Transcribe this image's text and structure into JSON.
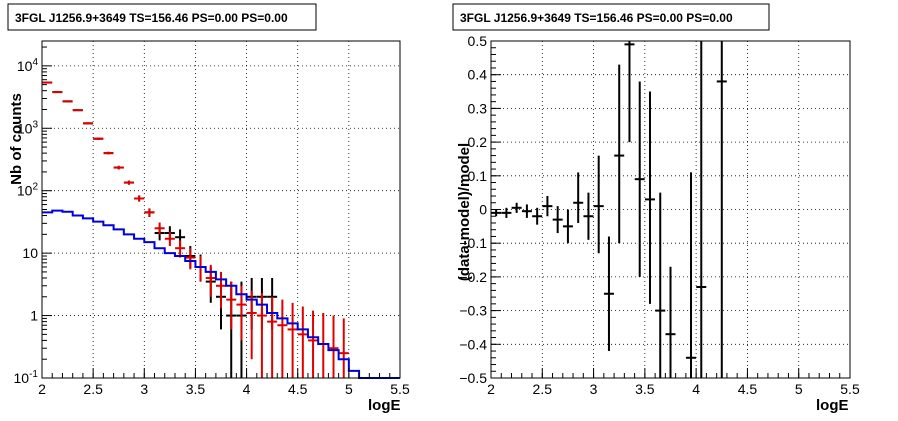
{
  "chart_data": [
    {
      "type": "line",
      "title": "3FGL J1256.9+3649 TS=156.46 PS=0.00 PS=0.00",
      "xlabel": "logE",
      "ylabel": "Nb of counts",
      "log_y": true,
      "xlim": [
        2,
        5.5
      ],
      "ylim": [
        0.1,
        25000
      ],
      "x_ticks": [
        "2",
        "2.5",
        "3",
        "3.5",
        "4",
        "4.5",
        "5",
        "5.5"
      ],
      "x_tick_values": [
        2,
        2.5,
        3,
        3.5,
        4,
        4.5,
        5,
        5.5
      ],
      "y_ticks": [
        "10^-1",
        "1",
        "10",
        "10^2",
        "10^3",
        "10^4"
      ],
      "y_tick_values": [
        0.1,
        1,
        10,
        100,
        1000,
        10000
      ],
      "grid": true,
      "series": [
        {
          "kind": "points",
          "color": "#000000",
          "x": [
            2.05,
            2.15,
            2.25,
            2.35,
            2.45,
            2.55,
            2.65,
            2.75,
            2.85,
            2.95,
            3.05,
            3.15,
            3.25,
            3.35,
            3.45,
            3.55,
            3.65,
            3.75,
            3.85,
            3.95,
            4.05,
            4.15,
            4.25
          ],
          "y": [
            5400,
            3800,
            2700,
            1950,
            1200,
            680,
            400,
            235,
            135,
            75,
            45,
            21,
            21,
            18,
            9,
            6,
            3.5,
            2,
            1,
            1,
            2,
            2,
            2
          ],
          "ylow": [
            5300,
            3700,
            2620,
            1900,
            1160,
            650,
            380,
            220,
            125,
            67,
            38,
            16,
            16,
            13,
            5.8,
            3.5,
            1.6,
            0.6,
            0.1,
            0.1,
            0.6,
            0.6,
            0.6
          ],
          "yhigh": [
            5500,
            3900,
            2780,
            2000,
            1240,
            710,
            420,
            250,
            145,
            84,
            52,
            27,
            27,
            24,
            13,
            9.5,
            6,
            4,
            3.5,
            3.5,
            4,
            4,
            4
          ]
        },
        {
          "kind": "points",
          "color": "#e00000",
          "x": [
            2.05,
            2.15,
            2.25,
            2.35,
            2.45,
            2.55,
            2.65,
            2.75,
            2.85,
            2.95,
            3.05,
            3.15,
            3.25,
            3.35,
            3.45,
            3.55,
            3.65,
            3.75,
            3.85,
            3.95,
            4.05,
            4.15,
            4.25,
            4.35,
            4.45,
            4.55,
            4.65,
            4.75,
            4.85,
            4.95
          ],
          "y": [
            5400,
            3800,
            2700,
            1950,
            1200,
            680,
            400,
            235,
            135,
            75,
            45,
            25,
            17,
            12,
            8.5,
            6,
            4,
            3,
            1.8,
            1.5,
            1.1,
            1,
            0.8,
            0.7,
            0.6,
            0.5,
            0.4,
            0.35,
            0.3,
            0.25
          ],
          "ylow": [
            5300,
            3700,
            2620,
            1900,
            1160,
            650,
            380,
            220,
            125,
            67,
            38,
            20,
            13,
            8.5,
            5.5,
            3.5,
            2,
            1.3,
            0.6,
            0.4,
            0.2,
            0.1,
            0.1,
            0.1,
            0.1,
            0.1,
            0.1,
            0.1,
            0.1,
            0.1
          ],
          "yhigh": [
            5500,
            3900,
            2780,
            2000,
            1240,
            710,
            420,
            250,
            145,
            84,
            52,
            31,
            22,
            16,
            12,
            9,
            6.5,
            5,
            3.5,
            3,
            2.5,
            2.3,
            2,
            1.8,
            1.6,
            1.4,
            1.2,
            1.1,
            1,
            0.9
          ]
        },
        {
          "kind": "step",
          "color": "#0000dd",
          "x_edges": [
            2.0,
            2.1,
            2.2,
            2.3,
            2.4,
            2.5,
            2.6,
            2.7,
            2.8,
            2.9,
            3.0,
            3.1,
            3.2,
            3.3,
            3.4,
            3.5,
            3.6,
            3.7,
            3.8,
            3.9,
            4.0,
            4.1,
            4.2,
            4.3,
            4.4,
            4.5,
            4.6,
            4.7,
            4.8,
            4.9,
            5.0,
            5.1,
            5.5
          ],
          "values": [
            45,
            48,
            46,
            40,
            36,
            32,
            28,
            24,
            20,
            17,
            15,
            12,
            10,
            9,
            7.5,
            6,
            5,
            3.8,
            3,
            2.2,
            1.8,
            1.5,
            1.1,
            0.9,
            0.75,
            0.6,
            0.45,
            0.35,
            0.28,
            0.2,
            0.13,
            0.1
          ]
        }
      ]
    },
    {
      "type": "scatter",
      "title": "3FGL J1256.9+3649 TS=156.46 PS=0.00 PS=0.00",
      "xlabel": "logE",
      "ylabel": "(data-model)/model",
      "xlim": [
        2,
        5.5
      ],
      "ylim": [
        -0.5,
        0.5
      ],
      "x_ticks": [
        "2",
        "2.5",
        "3",
        "3.5",
        "4",
        "4.5",
        "5",
        "5.5"
      ],
      "x_tick_values": [
        2,
        2.5,
        3,
        3.5,
        4,
        4.5,
        5,
        5.5
      ],
      "y_ticks": [
        "−0.5",
        "−0.4",
        "−0.3",
        "−0.2",
        "−0.1",
        "0",
        "0.1",
        "0.2",
        "0.3",
        "0.4",
        "0.5"
      ],
      "y_tick_values": [
        -0.5,
        -0.4,
        -0.3,
        -0.2,
        -0.1,
        0,
        0.1,
        0.2,
        0.3,
        0.4,
        0.5
      ],
      "grid": true,
      "series": [
        {
          "kind": "points",
          "color": "#000000",
          "x": [
            2.05,
            2.15,
            2.25,
            2.35,
            2.45,
            2.55,
            2.65,
            2.75,
            2.85,
            2.95,
            3.05,
            3.15,
            3.25,
            3.35,
            3.45,
            3.55,
            3.65,
            3.75,
            3.95,
            4.05,
            4.25
          ],
          "y": [
            -0.01,
            -0.01,
            0.005,
            -0.005,
            -0.02,
            0.01,
            -0.03,
            -0.05,
            0.02,
            -0.02,
            0.01,
            -0.25,
            0.16,
            0.49,
            0.09,
            0.03,
            -0.3,
            -0.37,
            -0.44,
            -0.23,
            0.38
          ],
          "ylow": [
            -0.02,
            -0.025,
            -0.01,
            -0.025,
            -0.045,
            -0.02,
            -0.07,
            -0.1,
            -0.04,
            -0.09,
            -0.13,
            -0.42,
            -0.1,
            0.2,
            -0.2,
            -0.28,
            -0.5,
            -0.5,
            -0.5,
            -0.5,
            -0.5
          ],
          "yhigh": [
            0.0,
            0.005,
            0.02,
            0.015,
            0.005,
            0.04,
            0.01,
            0.0,
            0.11,
            0.05,
            0.16,
            -0.08,
            0.43,
            0.5,
            0.38,
            0.35,
            0.05,
            -0.17,
            0.11,
            0.5,
            0.5
          ]
        }
      ]
    }
  ]
}
